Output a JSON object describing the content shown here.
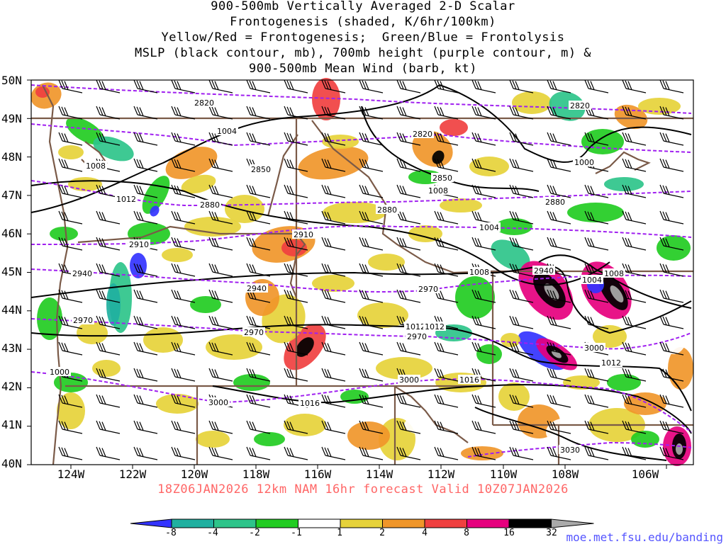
{
  "title_lines": [
    "900-500mb Vertically Averaged 2-D Scalar",
    "Frontogenesis (shaded, K/6hr/100km)",
    "Yellow/Red = Frontogenesis;  Green/Blue = Frontolysis",
    "MSLP (black contour, mb), 700mb height (purple contour, m) &",
    "900-500mb Mean Wind (barb, kt)"
  ],
  "lat_labels": [
    "50N",
    "49N",
    "48N",
    "47N",
    "46N",
    "45N",
    "44N",
    "43N",
    "42N",
    "41N",
    "40N"
  ],
  "lon_labels": [
    "124W",
    "122W",
    "120W",
    "118W",
    "116W",
    "114W",
    "112W",
    "110W",
    "108W",
    "106W"
  ],
  "footer": "18Z06JAN2026 12km NAM 16hr forecast Valid 10Z07JAN2026",
  "credit": "moe.met.fsu.edu/banding",
  "colorbar": {
    "labels": [
      "-8",
      "-4",
      "-2",
      "-1",
      "1",
      "2",
      "4",
      "8",
      "16",
      "32"
    ],
    "colors": [
      "#3333ff",
      "#20b0a0",
      "#2ec48a",
      "#22cc22",
      "#ffffff",
      "#e6d23a",
      "#f0962a",
      "#f04040",
      "#e6007e",
      "#000000",
      "#aaaaaa"
    ]
  },
  "mslp_labels": [
    "1004",
    "1008",
    "1012",
    "1000",
    "1004",
    "1008",
    "1004",
    "1008",
    "1012",
    "1008",
    "1016",
    "1012",
    "1000",
    "1012",
    "1016"
  ],
  "height_labels": [
    "2820",
    "2820",
    "2850",
    "2820",
    "2850",
    "2880",
    "2880",
    "2910",
    "2910",
    "2940",
    "2940",
    "2940",
    "2970",
    "2970",
    "2970",
    "2970",
    "3000",
    "3000",
    "3000",
    "3030",
    "2880"
  ],
  "colors": {
    "mslp": "#000000",
    "height": "#a020f0",
    "borders": "#7a5a48",
    "footer": "#ff6666",
    "credit": "#5555ff"
  }
}
